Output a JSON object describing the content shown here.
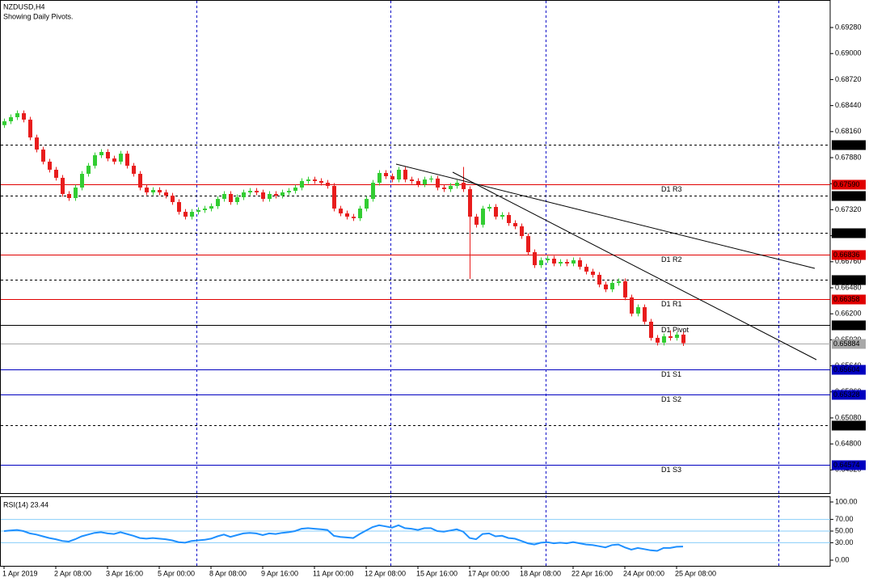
{
  "chart_data": [
    {
      "type": "candlestick",
      "title": "NZDUSD,H4",
      "subtitle": "Showing Daily Pivots.",
      "up_color": "#32cd32",
      "down_color": "#e81c1c",
      "open": [
        0.6823,
        0.68271,
        0.68315,
        0.68358,
        0.68289,
        0.68097,
        0.67967,
        0.67837,
        0.6775,
        0.67663,
        0.67489,
        0.67445,
        0.67558,
        0.67706,
        0.67793,
        0.67906,
        0.67941,
        0.67871,
        0.67837,
        0.67923,
        0.67793,
        0.67706,
        0.67558,
        0.67506,
        0.67532,
        0.67506,
        0.67471,
        0.67402,
        0.67297,
        0.67245,
        0.67297,
        0.67315,
        0.67332,
        0.67358,
        0.67436,
        0.67489,
        0.67402,
        0.67454,
        0.67506,
        0.67523,
        0.67506,
        0.67436,
        0.67489,
        0.67471,
        0.67506,
        0.67523,
        0.67558,
        0.67628,
        0.67645,
        0.67628,
        0.6761,
        0.67576,
        0.67332,
        0.6728,
        0.67245,
        0.67228,
        0.67332,
        0.67436,
        0.6761,
        0.67715,
        0.6768,
        0.67645,
        0.6775,
        0.67645,
        0.67628,
        0.67593,
        0.67645,
        0.67655,
        0.67558,
        0.67541,
        0.67576,
        0.6761,
        0.67541,
        0.67245,
        0.67158,
        0.67332,
        0.6735,
        0.67245,
        0.67263,
        0.67176,
        0.67141,
        0.67036,
        0.66863,
        0.66723,
        0.66776,
        0.66793,
        0.66741,
        0.66758,
        0.66741,
        0.66776,
        0.66706,
        0.66654,
        0.66619,
        0.66515,
        0.66463,
        0.66532,
        0.6655,
        0.66376,
        0.66202,
        0.66271,
        0.66115,
        0.65941,
        0.65889,
        0.65958,
        0.65941,
        0.65976
      ],
      "high": [
        0.68301,
        0.68345,
        0.68388,
        0.68388,
        0.68319,
        0.68127,
        0.67997,
        0.67867,
        0.6778,
        0.67693,
        0.67519,
        0.67588,
        0.67736,
        0.67823,
        0.67936,
        0.67971,
        0.67971,
        0.67901,
        0.67953,
        0.67953,
        0.67823,
        0.67736,
        0.67588,
        0.67562,
        0.67562,
        0.67536,
        0.67501,
        0.67432,
        0.67327,
        0.67327,
        0.67345,
        0.67362,
        0.67388,
        0.67466,
        0.67519,
        0.67519,
        0.67484,
        0.67536,
        0.67553,
        0.67553,
        0.67536,
        0.67519,
        0.67519,
        0.67536,
        0.67553,
        0.67588,
        0.67658,
        0.67675,
        0.67675,
        0.67658,
        0.6764,
        0.67606,
        0.67362,
        0.6731,
        0.67275,
        0.67362,
        0.67466,
        0.6764,
        0.67745,
        0.67745,
        0.6771,
        0.6778,
        0.6778,
        0.67675,
        0.67658,
        0.67675,
        0.67685,
        0.67685,
        0.67588,
        0.67606,
        0.6764,
        0.6778,
        0.67571,
        0.67275,
        0.67362,
        0.6738,
        0.6738,
        0.67293,
        0.67293,
        0.67206,
        0.67171,
        0.67066,
        0.66893,
        0.66806,
        0.66823,
        0.66823,
        0.66788,
        0.66788,
        0.66806,
        0.66806,
        0.66736,
        0.66684,
        0.66649,
        0.66545,
        0.66562,
        0.6658,
        0.6658,
        0.66406,
        0.66301,
        0.66301,
        0.66145,
        0.65971,
        0.65988,
        0.66022,
        0.66006,
        0.66006
      ],
      "low": [
        0.682,
        0.68241,
        0.68285,
        0.68259,
        0.68067,
        0.67937,
        0.67807,
        0.6772,
        0.67633,
        0.67459,
        0.67415,
        0.67415,
        0.67528,
        0.67676,
        0.67763,
        0.67876,
        0.67841,
        0.67807,
        0.67807,
        0.67763,
        0.67676,
        0.67528,
        0.67476,
        0.67476,
        0.67476,
        0.67441,
        0.67372,
        0.67267,
        0.67215,
        0.67215,
        0.67267,
        0.67285,
        0.67302,
        0.67328,
        0.67406,
        0.67372,
        0.67372,
        0.67424,
        0.67476,
        0.67476,
        0.67406,
        0.67406,
        0.67441,
        0.67441,
        0.67476,
        0.67493,
        0.67528,
        0.67598,
        0.67598,
        0.6758,
        0.67546,
        0.67302,
        0.6725,
        0.67215,
        0.67198,
        0.67198,
        0.67302,
        0.67406,
        0.6758,
        0.6765,
        0.67615,
        0.67615,
        0.67615,
        0.67598,
        0.67563,
        0.67563,
        0.67615,
        0.67528,
        0.67511,
        0.67511,
        0.67546,
        0.67511,
        0.66576,
        0.67128,
        0.67128,
        0.67302,
        0.67215,
        0.67215,
        0.67146,
        0.67111,
        0.67006,
        0.66833,
        0.66693,
        0.66693,
        0.66746,
        0.66711,
        0.66711,
        0.66711,
        0.66711,
        0.66676,
        0.66624,
        0.66589,
        0.66485,
        0.66433,
        0.66433,
        0.66502,
        0.66346,
        0.66172,
        0.66172,
        0.66085,
        0.65911,
        0.65859,
        0.65859,
        0.65911,
        0.65911,
        0.65854
      ],
      "close": [
        0.68271,
        0.68315,
        0.68358,
        0.68289,
        0.68097,
        0.67967,
        0.67837,
        0.6775,
        0.67663,
        0.67489,
        0.67445,
        0.67558,
        0.67706,
        0.67793,
        0.67906,
        0.67941,
        0.67871,
        0.67837,
        0.67923,
        0.67793,
        0.67706,
        0.67558,
        0.67506,
        0.67532,
        0.67506,
        0.67471,
        0.67402,
        0.67297,
        0.67245,
        0.67297,
        0.67315,
        0.67332,
        0.67358,
        0.67436,
        0.67489,
        0.67402,
        0.67454,
        0.67506,
        0.67523,
        0.67506,
        0.67436,
        0.67489,
        0.67471,
        0.67506,
        0.67523,
        0.67558,
        0.67628,
        0.67645,
        0.67628,
        0.6761,
        0.67576,
        0.67332,
        0.6728,
        0.67245,
        0.67228,
        0.67332,
        0.67436,
        0.6761,
        0.67715,
        0.6768,
        0.67645,
        0.6775,
        0.67645,
        0.67628,
        0.67593,
        0.67645,
        0.67655,
        0.67558,
        0.67541,
        0.67576,
        0.6761,
        0.67541,
        0.67245,
        0.67158,
        0.67332,
        0.6735,
        0.67245,
        0.67263,
        0.67176,
        0.67141,
        0.67036,
        0.66863,
        0.66723,
        0.66776,
        0.66793,
        0.66741,
        0.66758,
        0.66741,
        0.66776,
        0.66706,
        0.66654,
        0.66619,
        0.66515,
        0.66463,
        0.66532,
        0.6655,
        0.66376,
        0.66202,
        0.66271,
        0.66115,
        0.65941,
        0.65889,
        0.65958,
        0.65941,
        0.65976,
        0.65884
      ],
      "ylim": [
        0.64271,
        0.69576
      ],
      "yticks": [
        {
          "value": 0.6928,
          "label": "0.69280"
        },
        {
          "value": 0.69,
          "label": "0.69000"
        },
        {
          "value": 0.6872,
          "label": "0.68720"
        },
        {
          "value": 0.6844,
          "label": "0.68440"
        },
        {
          "value": 0.6816,
          "label": "0.68160"
        },
        {
          "value": 0.6788,
          "label": "0.67880"
        },
        {
          "value": 0.676,
          "label": "0.67600"
        },
        {
          "value": 0.6732,
          "label": "0.67320"
        },
        {
          "value": 0.6704,
          "label": "0.67040"
        },
        {
          "value": 0.6676,
          "label": "0.66760"
        },
        {
          "value": 0.6648,
          "label": "0.66480"
        },
        {
          "value": 0.662,
          "label": "0.66200"
        },
        {
          "value": 0.6592,
          "label": "0.65920"
        },
        {
          "value": 0.6564,
          "label": "0.65640"
        },
        {
          "value": 0.6536,
          "label": "0.65360"
        },
        {
          "value": 0.6508,
          "label": "0.65080"
        },
        {
          "value": 0.648,
          "label": "0.64800"
        },
        {
          "value": 0.6452,
          "label": "0.64520"
        }
      ],
      "xticks": [
        {
          "value": 0,
          "label": "1 Apr 2019"
        },
        {
          "value": 8,
          "label": "2 Apr 08:00"
        },
        {
          "value": 16,
          "label": "3 Apr 16:00"
        },
        {
          "value": 24,
          "label": "5 Apr 00:00"
        },
        {
          "value": 32,
          "label": "8 Apr 08:00"
        },
        {
          "value": 40,
          "label": "9 Apr 16:00"
        },
        {
          "value": 48,
          "label": "11 Apr 00:00"
        },
        {
          "value": 56,
          "label": "12 Apr 08:00"
        },
        {
          "value": 64,
          "label": "15 Apr 16:00"
        },
        {
          "value": 72,
          "label": "17 Apr 00:00"
        },
        {
          "value": 80,
          "label": "18 Apr 08:00"
        },
        {
          "value": 88,
          "label": "22 Apr 16:00"
        },
        {
          "value": 96,
          "label": "24 Apr 00:00"
        },
        {
          "value": 104,
          "label": "25 Apr 08:00"
        }
      ],
      "levels": [
        {
          "value": 0.68023,
          "style": "dashed",
          "color": "#000000"
        },
        {
          "value": 0.6759,
          "value_label": "0.67590",
          "name": "D1 R3",
          "style": "solid",
          "color": "#e00000"
        },
        {
          "value": 0.67474,
          "style": "dashed",
          "color": "#000000"
        },
        {
          "value": 0.67071,
          "style": "dashed",
          "color": "#000000"
        },
        {
          "value": 0.66836,
          "name": "D1 R2",
          "style": "solid",
          "color": "#e00000"
        },
        {
          "value": 0.66563,
          "style": "dashed",
          "color": "#000000"
        },
        {
          "value": 0.66358,
          "name": "D1 R1",
          "style": "solid",
          "color": "#e00000"
        },
        {
          "value": 0.66082,
          "name": "D1 Pivot",
          "style": "solid",
          "color": "#000000"
        },
        {
          "value": 0.65884,
          "style": "solid",
          "color": "#a8a8a8"
        },
        {
          "value": 0.65604,
          "name": "D1 S1",
          "style": "solid",
          "color": "#0000c0"
        },
        {
          "value": 0.65328,
          "name": "D1 S2",
          "style": "solid",
          "color": "#0000c0"
        },
        {
          "value": 0.65,
          "value_label": "0.65000",
          "style": "dashed",
          "color": "#000000"
        },
        {
          "value": 0.64574,
          "name": "D1 S3",
          "style": "solid",
          "color": "#0000c0"
        }
      ]
    },
    {
      "type": "line",
      "title": "RSI(14) 23.44",
      "color": "#1e90ff",
      "values": [
        50,
        51,
        52,
        50,
        46,
        44,
        41,
        38,
        36,
        33,
        32,
        36,
        41,
        44,
        47,
        48,
        46,
        45,
        48,
        45,
        42,
        38,
        37,
        38,
        37,
        36,
        34,
        31,
        30,
        33,
        34,
        35,
        37,
        41,
        44,
        40,
        43,
        46,
        47,
        46,
        43,
        46,
        45,
        47,
        48,
        50,
        54,
        55,
        54,
        53,
        52,
        42,
        40,
        39,
        38,
        45,
        51,
        57,
        60,
        58,
        56,
        60,
        55,
        54,
        52,
        55,
        55,
        50,
        49,
        51,
        53,
        49,
        38,
        36,
        45,
        46,
        41,
        42,
        38,
        37,
        33,
        29,
        27,
        30,
        31,
        29,
        30,
        29,
        31,
        29,
        27,
        26,
        24,
        22,
        26,
        27,
        22,
        18,
        21,
        19,
        17,
        16,
        21,
        21,
        23,
        23.44
      ],
      "ylim": [
        0,
        100
      ],
      "yticks": [
        {
          "value": 100,
          "label": "100.00"
        },
        {
          "value": 70,
          "label": "70.00"
        },
        {
          "value": 50,
          "label": "50.00"
        },
        {
          "value": 30,
          "label": "30.00"
        },
        {
          "value": 0,
          "label": "0.00"
        }
      ]
    }
  ]
}
